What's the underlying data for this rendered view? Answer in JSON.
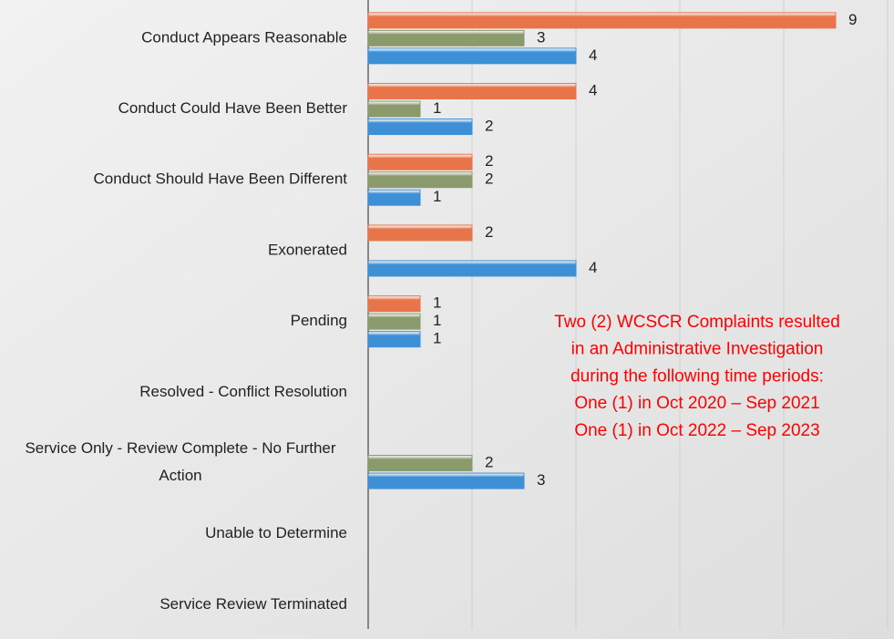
{
  "chart_data": {
    "type": "hbar",
    "categories": [
      "Conduct Appears Reasonable",
      "Conduct Could Have Been Better",
      "Conduct Should Have Been Different",
      "Exonerated",
      "Pending",
      "Resolved - Conflict Resolution",
      "Service Only - Review Complete - No Further Action",
      "Unable to Determine",
      "Service Review Terminated"
    ],
    "series": [
      {
        "color": "#e8744a",
        "values": [
          9,
          4,
          2,
          2,
          1,
          null,
          null,
          null,
          null
        ]
      },
      {
        "color": "#8b9a6c",
        "values": [
          3,
          1,
          2,
          null,
          1,
          null,
          2,
          null,
          null
        ]
      },
      {
        "color": "#3d8fd6",
        "values": [
          4,
          2,
          1,
          4,
          1,
          null,
          3,
          null,
          null
        ]
      }
    ],
    "xlim": [
      0,
      10
    ],
    "xticks": [
      0,
      2,
      4,
      6,
      8,
      10
    ],
    "grid": true,
    "annotation": [
      "Two (2) WCSCR Complaints resulted",
      "in an Administrative Investigation",
      "during the following time periods:",
      "One (1) in Oct 2020 – Sep 2021",
      "One (1) in Oct 2022 – Sep 2023"
    ]
  }
}
